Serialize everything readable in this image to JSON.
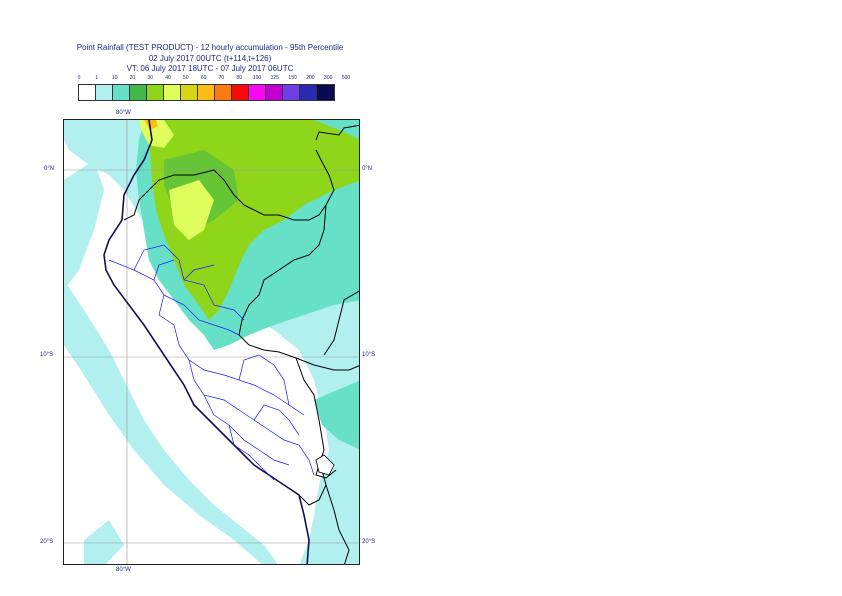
{
  "header": {
    "title": "Point Rainfall (TEST PRODUCT) - 12 hourly accumulation - 95th Percentile",
    "subtitle": "02 July 2017 00UTC (t+114,t+126)",
    "valid_time": "VT: 06 July 2017 18UTC - 07 July 2017 06UTC"
  },
  "legend": {
    "thresholds": [
      "0",
      "1",
      "10",
      "20",
      "30",
      "40",
      "50",
      "60",
      "70",
      "80",
      "100",
      "125",
      "150",
      "200",
      "300",
      "500"
    ],
    "colors": [
      "#ffffff",
      "#b2f0ef",
      "#66e0c6",
      "#43b84a",
      "#8fd61a",
      "#dffe5e",
      "#d4d614",
      "#fdbd16",
      "#fc7b0e",
      "#f70a0a",
      "#f906f5",
      "#c000d0",
      "#6f3ee6",
      "#2a2ab0",
      "#0a0a50"
    ]
  },
  "map": {
    "lat_labels": [
      "0°N",
      "10°S",
      "20°S"
    ],
    "lon_labels": [
      "80°W",
      "80°W"
    ],
    "colors": {
      "ocean": "#ffffff",
      "light_rain": "#b2f0ef",
      "moderate_rain": "#66e0c6",
      "heavy_rain": "#8fd61a",
      "very_heavy_rain": "#dffe5e",
      "peak": "#fdbd16",
      "country_border": "#000000",
      "region_border": "#1a1aff",
      "coastline": "#101050",
      "graticule": "#999999"
    }
  }
}
